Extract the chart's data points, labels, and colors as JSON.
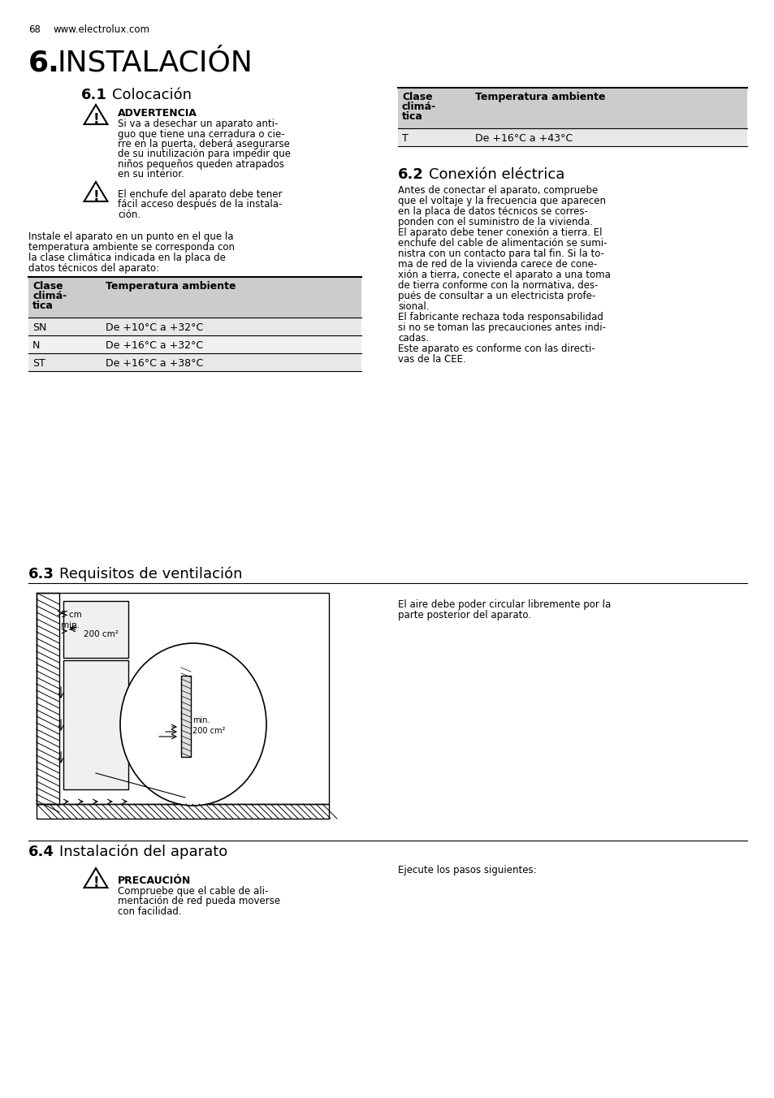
{
  "page_number": "68",
  "website": "www.electrolux.com",
  "section_number": "6.",
  "section_title": "INSTALACIÓN",
  "subsection_1_num": "6.1",
  "subsection_1_title": "Colocación",
  "warning_1_title": "ADVERTENCIA",
  "warning_1_text": "Si va a desechar un aparato anti-\nguo que tiene una cerradura o cie-\nrre en la puerta, deberá asegurarse\nde su inutilización para impedir que\nniños pequeños queden atrapados\nen su interior.",
  "warning_2_text": "El enchufe del aparato debe tener\nfácil acceso después de la instala-\nción.",
  "install_text": "Instale el aparato en un punto en el que la\ntemperatura ambiente se corresponda con\nla clase climática indicada en la placa de\ndatos técnicos del aparato:",
  "table1_header_col1": "Clase\nclimá-\ntica",
  "table1_header_col2": "Temperatura ambiente",
  "table1_rows": [
    [
      "SN",
      "De +10°C a +32°C"
    ],
    [
      "N",
      "De +16°C a +32°C"
    ],
    [
      "ST",
      "De +16°C a +38°C"
    ]
  ],
  "table2_header_col1": "Clase\nclimá-\ntica",
  "table2_header_col2": "Temperatura ambiente",
  "table2_rows": [
    [
      "T",
      "De +16°C a +43°C"
    ]
  ],
  "subsection_2_num": "6.2",
  "subsection_2_title": "Conexión eléctrica",
  "electric_text": "Antes de conectar el aparato, compruebe\nque el voltaje y la frecuencia que aparecen\nen la placa de datos técnicos se corres-\nponden con el suministro de la vivienda.\nEl aparato debe tener conexión a tierra. El\nenchufe del cable de alimentación se sumi-\nnistra con un contacto para tal fin. Si la to-\nma de red de la vivienda carece de cone-\nxión a tierra, conecte el aparato a una toma\nde tierra conforme con la normativa, des-\npués de consultar a un electricista profe-\nsional.\nEl fabricante rechaza toda responsabilidad\nsi no se toman las precauciones antes indi-\ncadas.\nEste aparato es conforme con las directi-\nvas de la CEE.",
  "subsection_3_num": "6.3",
  "subsection_3_title": "Requisitos de ventilación",
  "ventilation_text": "El aire debe poder circular libremente por la\nparte posterior del aparato.",
  "subsection_4_num": "6.4",
  "subsection_4_title": "Instalación del aparato",
  "precaution_title": "PRECAUCIÓN",
  "precaution_text": "Compruebe que el cable de ali-\nmentación de red pueda moverse\ncon facilidad.",
  "execute_text": "Ejecute los pasos siguientes:",
  "bg_color": "#ffffff",
  "text_color": "#000000",
  "table_header_bg": "#d0d0d0",
  "table_row_bg_alt": "#e8e8e8",
  "table_row_bg": "#f0f0f0"
}
